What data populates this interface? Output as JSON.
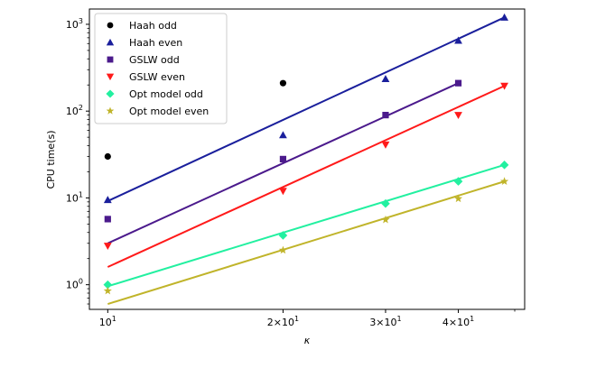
{
  "chart_data": {
    "type": "scatter",
    "title": "",
    "xlabel": "κ",
    "ylabel": "CPU time(s)",
    "xscale": "log",
    "yscale": "log",
    "xlim": [
      9.3,
      52
    ],
    "ylim": [
      0.52,
      1500
    ],
    "grid": false,
    "legend_position": "top-left",
    "x_ticks": [
      {
        "value": 10,
        "base": "10",
        "exp": "1",
        "mantissa": ""
      },
      {
        "value": 20,
        "base": "10",
        "exp": "1",
        "mantissa": "2×"
      },
      {
        "value": 30,
        "base": "10",
        "exp": "1",
        "mantissa": "3×"
      },
      {
        "value": 40,
        "base": "10",
        "exp": "1",
        "mantissa": "4×"
      }
    ],
    "y_ticks": [
      {
        "value": 1,
        "base": "10",
        "exp": "0"
      },
      {
        "value": 10,
        "base": "10",
        "exp": "1"
      },
      {
        "value": 100,
        "base": "10",
        "exp": "2"
      },
      {
        "value": 1000,
        "base": "10",
        "exp": "3"
      }
    ],
    "x_minor_ticks": [
      50
    ],
    "y_minor_ticks": [
      0.6,
      0.7,
      0.8,
      0.9,
      2,
      3,
      4,
      5,
      6,
      7,
      8,
      9,
      20,
      30,
      40,
      50,
      60,
      70,
      80,
      90,
      200,
      300,
      400,
      500,
      600,
      700,
      800,
      900
    ],
    "series": [
      {
        "name": "Haah odd",
        "marker": "circle",
        "color": "#000000",
        "points": [
          [
            10,
            30
          ],
          [
            20,
            210
          ]
        ],
        "fit": null
      },
      {
        "name": "Haah even",
        "marker": "triangle-up",
        "color": "#1a1f9c",
        "points": [
          [
            10,
            9.5
          ],
          [
            20,
            53
          ],
          [
            30,
            235
          ],
          [
            40,
            650
          ],
          [
            48,
            1200
          ]
        ],
        "fit": [
          [
            10,
            9.2
          ],
          [
            48,
            1200
          ]
        ]
      },
      {
        "name": "GSLW odd",
        "marker": "square",
        "color": "#4b1a8c",
        "points": [
          [
            10,
            5.7
          ],
          [
            20,
            28
          ],
          [
            30,
            90
          ],
          [
            40,
            210
          ]
        ],
        "fit": [
          [
            10,
            3.0
          ],
          [
            40,
            210
          ]
        ]
      },
      {
        "name": "GSLW even",
        "marker": "triangle-down",
        "color": "#ff1a1a",
        "points": [
          [
            10,
            2.8
          ],
          [
            20,
            12
          ],
          [
            30,
            41
          ],
          [
            40,
            90
          ],
          [
            48,
            195
          ]
        ],
        "fit": [
          [
            10,
            1.6
          ],
          [
            48,
            195
          ]
        ]
      },
      {
        "name": "Opt model odd",
        "marker": "diamond",
        "color": "#22f0a0",
        "points": [
          [
            10,
            1.0
          ],
          [
            20,
            3.7
          ],
          [
            30,
            8.6
          ],
          [
            40,
            15.5
          ],
          [
            48,
            24
          ]
        ],
        "fit": [
          [
            10,
            0.96
          ],
          [
            48,
            24
          ]
        ]
      },
      {
        "name": "Opt model even",
        "marker": "star",
        "color": "#c0b42a",
        "points": [
          [
            10,
            0.85
          ],
          [
            20,
            2.5
          ],
          [
            30,
            5.6
          ],
          [
            40,
            9.8
          ],
          [
            48,
            15.5
          ]
        ],
        "fit": [
          [
            10,
            0.6
          ],
          [
            48,
            15.5
          ]
        ]
      }
    ]
  }
}
